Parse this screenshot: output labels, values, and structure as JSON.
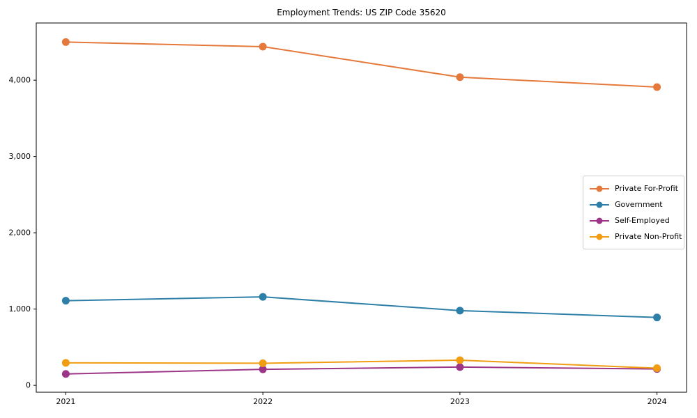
{
  "figure": {
    "background": "#ffffff",
    "text_color": "#000000",
    "axes_border_color": "#000000"
  },
  "chart_data": {
    "type": "line",
    "title": "Employment Trends: US ZIP Code 35620",
    "xlabel": "",
    "ylabel": "",
    "x": [
      2021,
      2022,
      2023,
      2024
    ],
    "x_tick_labels": [
      "2021",
      "2022",
      "2023",
      "2024"
    ],
    "y_ticks": [
      0,
      1000,
      2000,
      3000,
      4000
    ],
    "y_tick_labels": [
      "0",
      "1,000",
      "2,000",
      "3,000",
      "4,000"
    ],
    "xlim": [
      2020.85,
      2024.15
    ],
    "ylim": [
      -90,
      4750
    ],
    "grid": false,
    "legend_position": "center-right",
    "series": [
      {
        "name": "Private For-Profit",
        "color": "#e5793b",
        "values": [
          4500,
          4440,
          4040,
          3910
        ]
      },
      {
        "name": "Government",
        "color": "#2e7fa8",
        "values": [
          1110,
          1160,
          980,
          890
        ]
      },
      {
        "name": "Self-Employed",
        "color": "#9c3587",
        "values": [
          150,
          210,
          240,
          215
        ]
      },
      {
        "name": "Private Non-Profit",
        "color": "#f09d13",
        "values": [
          295,
          290,
          330,
          225
        ]
      }
    ]
  }
}
